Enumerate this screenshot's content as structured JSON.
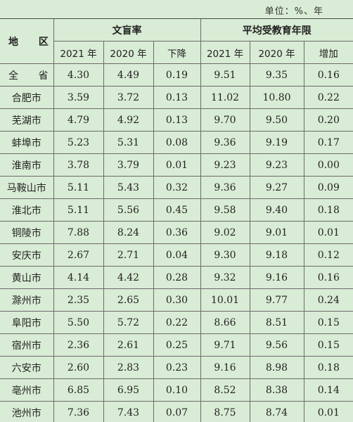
{
  "unit_label": "单位：%、年",
  "header": {
    "region": "地  区",
    "illiteracy_group": "文盲率",
    "schooling_group": "平均受教育年限",
    "sub": [
      "2021 年",
      "2020 年",
      "下降",
      "2021 年",
      "2020 年",
      "增加"
    ]
  },
  "rows": [
    {
      "region": "全  省",
      "v": [
        "4.30",
        "4.49",
        "0.19",
        "9.51",
        "9.35",
        "0.16"
      ]
    },
    {
      "region": "合肥市",
      "v": [
        "3.59",
        "3.72",
        "0.13",
        "11.02",
        "10.80",
        "0.22"
      ]
    },
    {
      "region": "芜湖市",
      "v": [
        "4.79",
        "4.92",
        "0.13",
        "9.70",
        "9.50",
        "0.20"
      ]
    },
    {
      "region": "蚌埠市",
      "v": [
        "5.23",
        "5.31",
        "0.08",
        "9.36",
        "9.19",
        "0.17"
      ]
    },
    {
      "region": "淮南市",
      "v": [
        "3.78",
        "3.79",
        "0.01",
        "9.23",
        "9.23",
        "0.00"
      ]
    },
    {
      "region": "马鞍山市",
      "v": [
        "5.11",
        "5.43",
        "0.32",
        "9.36",
        "9.27",
        "0.09"
      ]
    },
    {
      "region": "淮北市",
      "v": [
        "5.11",
        "5.56",
        "0.45",
        "9.58",
        "9.40",
        "0.18"
      ]
    },
    {
      "region": "铜陵市",
      "v": [
        "7.88",
        "8.24",
        "0.36",
        "9.02",
        "9.01",
        "0.01"
      ]
    },
    {
      "region": "安庆市",
      "v": [
        "2.67",
        "2.71",
        "0.04",
        "9.30",
        "9.18",
        "0.12"
      ]
    },
    {
      "region": "黄山市",
      "v": [
        "4.14",
        "4.42",
        "0.28",
        "9.32",
        "9.16",
        "0.16"
      ]
    },
    {
      "region": "滁州市",
      "v": [
        "2.35",
        "2.65",
        "0.30",
        "10.01",
        "9.77",
        "0.24"
      ]
    },
    {
      "region": "阜阳市",
      "v": [
        "5.50",
        "5.72",
        "0.22",
        "8.66",
        "8.51",
        "0.15"
      ]
    },
    {
      "region": "宿州市",
      "v": [
        "2.36",
        "2.61",
        "0.25",
        "9.71",
        "9.56",
        "0.15"
      ]
    },
    {
      "region": "六安市",
      "v": [
        "2.60",
        "2.83",
        "0.23",
        "9.16",
        "8.98",
        "0.18"
      ]
    },
    {
      "region": "亳州市",
      "v": [
        "6.85",
        "6.95",
        "0.10",
        "8.52",
        "8.38",
        "0.14"
      ]
    },
    {
      "region": "池州市",
      "v": [
        "7.36",
        "7.43",
        "0.07",
        "8.75",
        "8.74",
        "0.01"
      ]
    }
  ]
}
